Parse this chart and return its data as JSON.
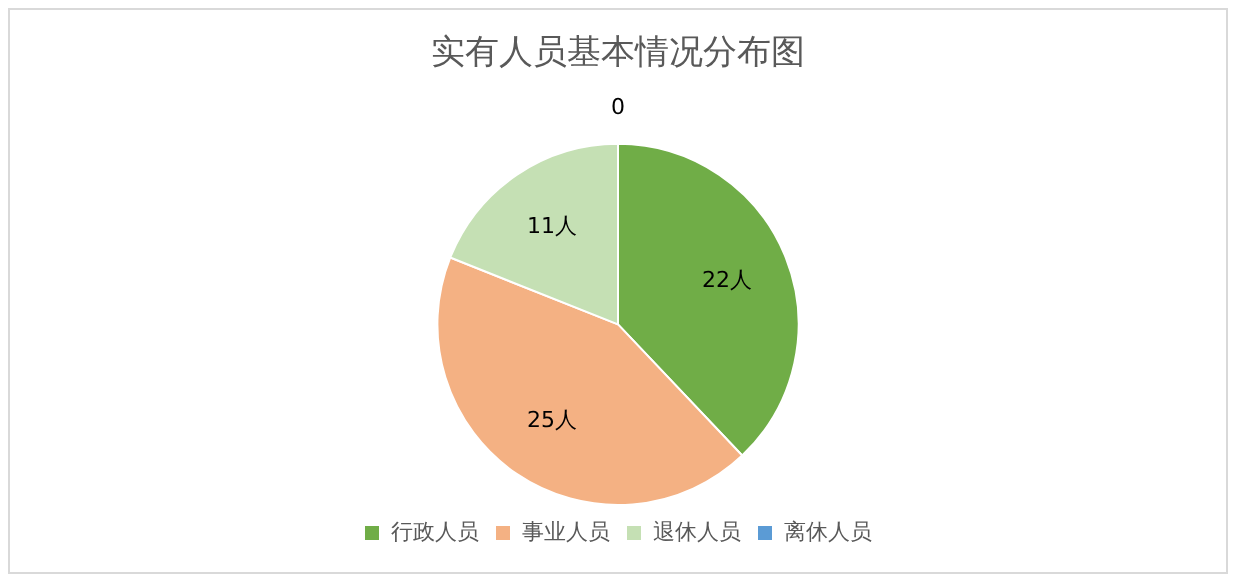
{
  "chart_data": {
    "type": "pie",
    "title": "实有人员基本情况分布图",
    "categories": [
      "行政人员",
      "事业人员",
      "退休人员",
      "离休人员"
    ],
    "values": [
      22,
      25,
      11,
      0
    ],
    "value_labels": [
      "22人",
      "25人",
      "11人",
      "0"
    ],
    "colors": [
      "#70ad47",
      "#f4b183",
      "#c5e0b4",
      "#5b9bd5"
    ],
    "legend": "bottom"
  }
}
